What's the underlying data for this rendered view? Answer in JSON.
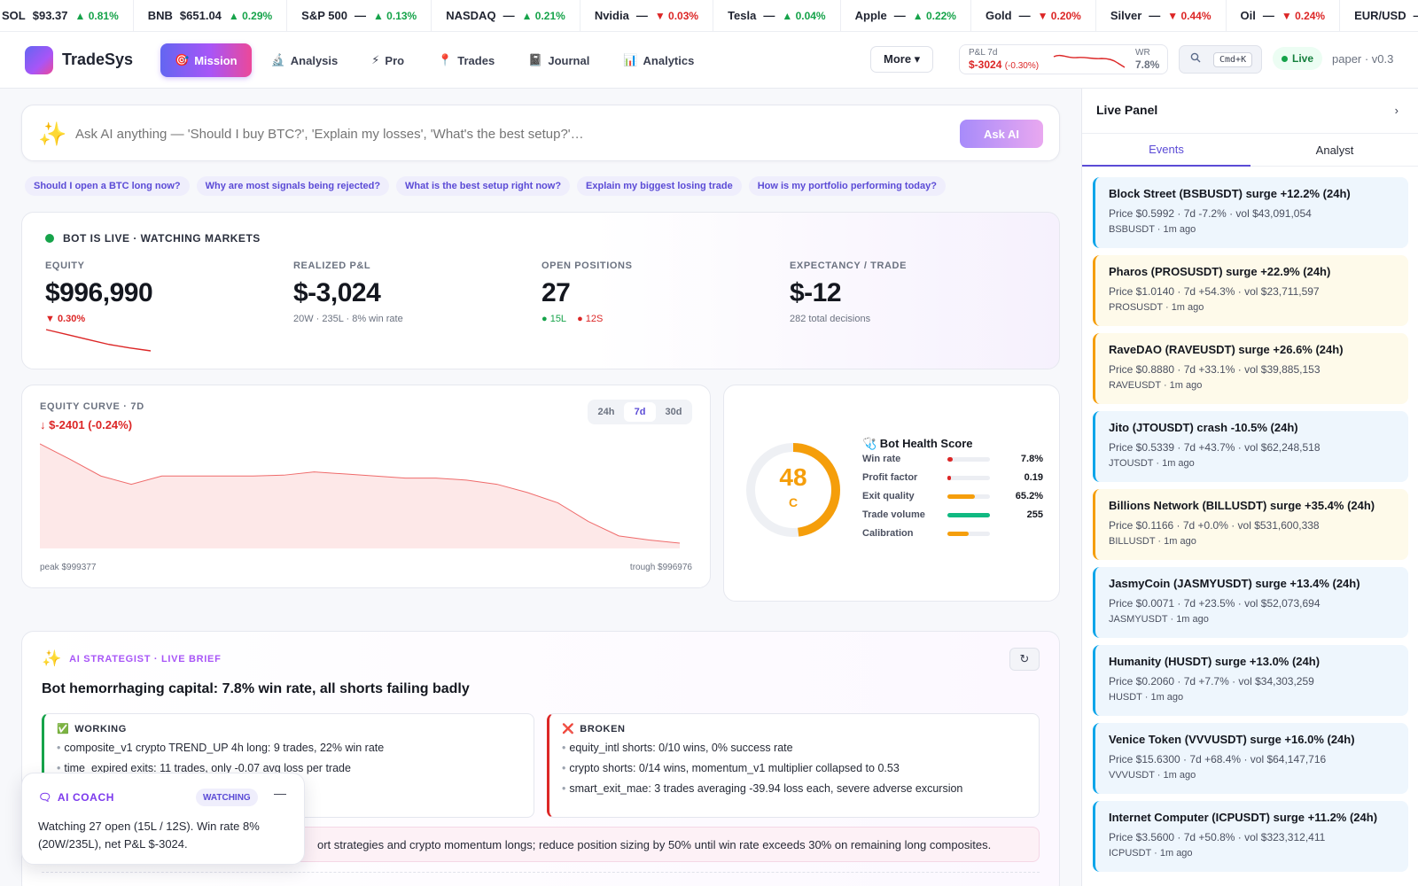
{
  "ticker": [
    {
      "symbol": "SOL",
      "price": "$93.37",
      "change": "▲ 0.81%",
      "dir": "up"
    },
    {
      "symbol": "BNB",
      "price": "$651.04",
      "change": "▲ 0.29%",
      "dir": "up"
    },
    {
      "symbol": "S&P 500",
      "price": "—",
      "change": "▲ 0.13%",
      "dir": "up"
    },
    {
      "symbol": "NASDAQ",
      "price": "—",
      "change": "▲ 0.21%",
      "dir": "up"
    },
    {
      "symbol": "Nvidia",
      "price": "—",
      "change": "▼ 0.03%",
      "dir": "down"
    },
    {
      "symbol": "Tesla",
      "price": "—",
      "change": "▲ 0.04%",
      "dir": "up"
    },
    {
      "symbol": "Apple",
      "price": "—",
      "change": "▲ 0.22%",
      "dir": "up"
    },
    {
      "symbol": "Gold",
      "price": "—",
      "change": "▼ 0.20%",
      "dir": "down"
    },
    {
      "symbol": "Silver",
      "price": "—",
      "change": "▼ 0.44%",
      "dir": "down"
    },
    {
      "symbol": "Oil",
      "price": "—",
      "change": "▼ 0.24%",
      "dir": "down"
    },
    {
      "symbol": "EUR/USD",
      "price": "—",
      "change": "▲ 0.",
      "dir": "up"
    }
  ],
  "header": {
    "brand": "TradeSys",
    "nav": [
      {
        "icon": "🎯",
        "icon_name": "target-icon",
        "label": "Mission",
        "active": true
      },
      {
        "icon": "🔬",
        "icon_name": "microscope-icon",
        "label": "Analysis",
        "active": false
      },
      {
        "icon": "⚡",
        "icon_name": "lightning-icon",
        "label": "Pro",
        "active": false
      },
      {
        "icon": "📍",
        "icon_name": "pin-icon",
        "label": "Trades",
        "active": false
      },
      {
        "icon": "📓",
        "icon_name": "notebook-icon",
        "label": "Journal",
        "active": false
      },
      {
        "icon": "📊",
        "icon_name": "bar-chart-icon",
        "label": "Analytics",
        "active": false
      }
    ],
    "more_label": "More ▾",
    "pnl_label": "P&L 7d",
    "pnl_value": "$-3024",
    "pnl_pct": "(-0.30%)",
    "wr_label": "WR",
    "wr_value": "7.8%",
    "search_shortcut": "Cmd+K",
    "live_label": "Live",
    "version": "paper · v0.3"
  },
  "ask": {
    "placeholder": "Ask AI anything — 'Should I buy BTC?', 'Explain my losses', 'What's the best setup?'…",
    "button": "Ask AI",
    "chips": [
      "Should I open a BTC long now?",
      "Why are most signals being rejected?",
      "What is the best setup right now?",
      "Explain my biggest losing trade",
      "How is my portfolio performing today?"
    ]
  },
  "status": {
    "heading": "BOT IS LIVE · WATCHING MARKETS",
    "equity_label": "EQUITY",
    "equity_value": "$996,990",
    "equity_change": "▼ 0.30%",
    "equity_spark": [
      1000000,
      999300,
      998600,
      997900,
      997400,
      996990
    ],
    "pnl_label": "REALIZED P&L",
    "pnl_value": "$-3,024",
    "pnl_sub": "20W · 235L · 8% win rate",
    "open_label": "OPEN POSITIONS",
    "open_value": "27",
    "open_long": "● 15L",
    "open_short": "● 12S",
    "exp_label": "EXPECTANCY / TRADE",
    "exp_value": "$-12",
    "exp_sub": "282 total decisions"
  },
  "curve": {
    "title": "EQUITY CURVE · 7D",
    "delta": "↓ $-2401 (-0.24%)",
    "tabs": [
      "24h",
      "7d",
      "30d"
    ],
    "active_tab": "7d",
    "peak": "peak $999377",
    "trough": "trough $996976",
    "chart_data": {
      "type": "area",
      "y": [
        999377,
        999000,
        998600,
        998400,
        998600,
        998600,
        998600,
        998600,
        998620,
        998700,
        998650,
        998600,
        998550,
        998550,
        998500,
        998400,
        998200,
        997950,
        997500,
        997150,
        997050,
        996976
      ],
      "ylim": [
        996976,
        999377
      ]
    }
  },
  "health": {
    "title": "🩺 Bot Health Score",
    "score": "48",
    "score_value": 48,
    "grade": "C",
    "rows": [
      {
        "label": "Win rate",
        "value": "7.8%",
        "fill": 0.12,
        "color": "#dc2626"
      },
      {
        "label": "Profit factor",
        "value": "0.19",
        "fill": 0.08,
        "color": "#dc2626"
      },
      {
        "label": "Exit quality",
        "value": "65.2%",
        "fill": 0.65,
        "color": "#f59e0b"
      },
      {
        "label": "Trade volume",
        "value": "255",
        "fill": 1.0,
        "color": "#10b981"
      },
      {
        "label": "Calibration",
        "value": "",
        "fill": 0.5,
        "color": "#f59e0b"
      }
    ]
  },
  "strategist": {
    "heading": "AI STRATEGIST · LIVE BRIEF",
    "title": "Bot hemorrhaging capital: 7.8% win rate, all shorts failing badly",
    "working_label": "WORKING",
    "working": [
      "composite_v1 crypto TREND_UP 4h long: 9 trades, 22% win rate",
      "time_expired exits: 11 trades, only -0.07 avg loss per trade"
    ],
    "broken_label": "BROKEN",
    "broken": [
      "equity_intl shorts: 0/10 wins, 0% success rate",
      "crypto shorts: 0/14 wins, momentum_v1 multiplier collapsed to 0.53",
      "smart_exit_mae: 3 trades averaging -39.94 loss each, severe adverse excursion"
    ],
    "action": "ort strategies and crypto momentum longs; reduce position sizing by 50% until win rate exceeds 30% on remaining long composites.",
    "foot": ""
  },
  "coach": {
    "heading": "AI COACH",
    "badge": "WATCHING",
    "body": "Watching 27 open (15L / 12S). Win rate 8% (20W/235L), net P&L $-3024."
  },
  "live_panel": {
    "title": "Live Panel",
    "tabs": [
      "Events",
      "Analyst"
    ],
    "events": [
      {
        "title": "Block Street (BSBUSDT) surge +12.2% (24h)",
        "detail": "Price $0.5992 · 7d -7.2% · vol $43,091,054",
        "meta": "BSBUSDT · 1m ago",
        "strong": false
      },
      {
        "title": "Pharos (PROSUSDT) surge +22.9% (24h)",
        "detail": "Price $1.0140 · 7d +54.3% · vol $23,711,597",
        "meta": "PROSUSDT · 1m ago",
        "strong": true
      },
      {
        "title": "RaveDAO (RAVEUSDT) surge +26.6% (24h)",
        "detail": "Price $0.8880 · 7d +33.1% · vol $39,885,153",
        "meta": "RAVEUSDT · 1m ago",
        "strong": true
      },
      {
        "title": "Jito (JTOUSDT) crash -10.5% (24h)",
        "detail": "Price $0.5339 · 7d +43.7% · vol $62,248,518",
        "meta": "JTOUSDT · 1m ago",
        "strong": false
      },
      {
        "title": "Billions Network (BILLUSDT) surge +35.4% (24h)",
        "detail": "Price $0.1166 · 7d +0.0% · vol $531,600,338",
        "meta": "BILLUSDT · 1m ago",
        "strong": true
      },
      {
        "title": "JasmyCoin (JASMYUSDT) surge +13.4% (24h)",
        "detail": "Price $0.0071 · 7d +23.5% · vol $52,073,694",
        "meta": "JASMYUSDT · 1m ago",
        "strong": false
      },
      {
        "title": "Humanity (HUSDT) surge +13.0% (24h)",
        "detail": "Price $0.2060 · 7d +7.7% · vol $34,303,259",
        "meta": "HUSDT · 1m ago",
        "strong": false
      },
      {
        "title": "Venice Token (VVVUSDT) surge +16.0% (24h)",
        "detail": "Price $15.6300 · 7d +68.4% · vol $64,147,716",
        "meta": "VVVUSDT · 1m ago",
        "strong": false
      },
      {
        "title": "Internet Computer (ICPUSDT) surge +11.2% (24h)",
        "detail": "Price $3.5600 · 7d +50.8% · vol $323,312,411",
        "meta": "ICPUSDT · 1m ago",
        "strong": false
      }
    ]
  }
}
